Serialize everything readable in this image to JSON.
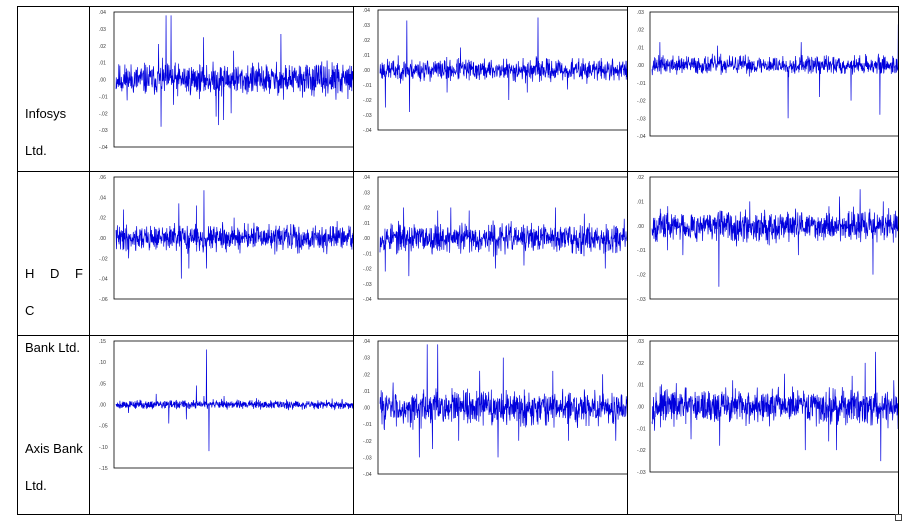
{
  "rows": [
    {
      "label_lines": [
        "Infosys",
        "Ltd."
      ]
    },
    {
      "label_lines": [
        "H D F C",
        "Bank Ltd."
      ]
    },
    {
      "label_lines": [
        "Axis Bank",
        "Ltd."
      ]
    }
  ],
  "colors": {
    "series": "#0000dd",
    "frame": "#000000",
    "ticks": "#333333"
  },
  "chart_data": [
    {
      "type": "line",
      "row": 0,
      "col": 0,
      "yticks": [
        ".04",
        ".03",
        ".02",
        ".01",
        ".00",
        "-.01",
        "-.02",
        "-.03",
        "-.04"
      ],
      "ylim": [
        -0.04,
        0.04
      ],
      "n": 900,
      "noise": 0.0045,
      "seed": 11,
      "spikes": [
        [
          0.17,
          0.021
        ],
        [
          0.18,
          -0.028
        ],
        [
          0.2,
          0.038
        ],
        [
          0.22,
          0.038
        ],
        [
          0.23,
          -0.015
        ],
        [
          0.35,
          0.025
        ],
        [
          0.4,
          -0.022
        ],
        [
          0.41,
          -0.027
        ],
        [
          0.43,
          -0.024
        ],
        [
          0.46,
          -0.02
        ],
        [
          0.47,
          0.017
        ],
        [
          0.66,
          0.027
        ],
        [
          0.67,
          -0.012
        ],
        [
          0.88,
          -0.012
        ]
      ]
    },
    {
      "type": "line",
      "row": 0,
      "col": 1,
      "yticks": [
        ".04",
        ".03",
        ".02",
        ".01",
        ".00",
        "-.01",
        "-.02",
        "-.03",
        "-.04"
      ],
      "ylim": [
        -0.04,
        0.04
      ],
      "n": 900,
      "noise": 0.0035,
      "seed": 23,
      "spikes": [
        [
          0.02,
          -0.025
        ],
        [
          0.1,
          0.033
        ],
        [
          0.11,
          -0.028
        ],
        [
          0.25,
          -0.015
        ],
        [
          0.3,
          0.015
        ],
        [
          0.48,
          -0.02
        ],
        [
          0.55,
          -0.015
        ],
        [
          0.59,
          0.035
        ],
        [
          0.7,
          -0.013
        ],
        [
          0.95,
          -0.016
        ]
      ]
    },
    {
      "type": "line",
      "row": 0,
      "col": 2,
      "yticks": [
        ".03",
        ".02",
        ".01",
        ".00",
        "-.01",
        "-.02",
        "-.03",
        "-.04"
      ],
      "ylim": [
        -0.04,
        0.03
      ],
      "n": 900,
      "noise": 0.0025,
      "seed": 37,
      "spikes": [
        [
          0.03,
          0.013
        ],
        [
          0.25,
          0.011
        ],
        [
          0.52,
          -0.03
        ],
        [
          0.57,
          0.013
        ],
        [
          0.64,
          -0.018
        ],
        [
          0.76,
          -0.02
        ],
        [
          0.87,
          -0.028
        ],
        [
          0.94,
          0.023
        ],
        [
          0.96,
          -0.01
        ],
        [
          0.98,
          0.008
        ]
      ]
    },
    {
      "type": "line",
      "row": 1,
      "col": 0,
      "yticks": [
        ".06",
        ".04",
        ".02",
        ".00",
        "-.02",
        "-.04",
        "-.06"
      ],
      "ylim": [
        -0.06,
        0.06
      ],
      "n": 900,
      "noise": 0.006,
      "seed": 41,
      "spikes": [
        [
          0.03,
          0.028
        ],
        [
          0.05,
          -0.02
        ],
        [
          0.25,
          0.034
        ],
        [
          0.26,
          -0.04
        ],
        [
          0.29,
          -0.03
        ],
        [
          0.32,
          0.032
        ],
        [
          0.35,
          0.047
        ],
        [
          0.36,
          -0.03
        ],
        [
          0.47,
          0.02
        ],
        [
          0.55,
          0.015
        ],
        [
          0.73,
          -0.015
        ]
      ]
    },
    {
      "type": "line",
      "row": 1,
      "col": 1,
      "yticks": [
        ".04",
        ".03",
        ".02",
        ".01",
        ".00",
        "-.01",
        "-.02",
        "-.03",
        "-.04"
      ],
      "ylim": [
        -0.04,
        0.04
      ],
      "n": 900,
      "noise": 0.0045,
      "seed": 53,
      "spikes": [
        [
          0.02,
          -0.022
        ],
        [
          0.09,
          0.02
        ],
        [
          0.11,
          -0.025
        ],
        [
          0.22,
          0.018
        ],
        [
          0.27,
          0.02
        ],
        [
          0.34,
          0.018
        ],
        [
          0.44,
          -0.02
        ],
        [
          0.55,
          -0.018
        ],
        [
          0.67,
          0.02
        ],
        [
          0.78,
          0.016
        ],
        [
          0.86,
          -0.02
        ],
        [
          0.97,
          -0.015
        ]
      ]
    },
    {
      "type": "line",
      "row": 1,
      "col": 2,
      "yticks": [
        ".02",
        ".01",
        ".00",
        "-.01",
        "-.02",
        "-.03"
      ],
      "ylim": [
        -0.03,
        0.02
      ],
      "n": 900,
      "noise": 0.003,
      "seed": 67,
      "spikes": [
        [
          0.06,
          -0.01
        ],
        [
          0.12,
          -0.012
        ],
        [
          0.26,
          -0.025
        ],
        [
          0.38,
          0.01
        ],
        [
          0.57,
          -0.012
        ],
        [
          0.73,
          0.012
        ],
        [
          0.81,
          0.015
        ],
        [
          0.86,
          -0.02
        ],
        [
          0.9,
          0.01
        ],
        [
          0.97,
          0.012
        ]
      ]
    },
    {
      "type": "line",
      "row": 2,
      "col": 0,
      "yticks": [
        ".15",
        ".10",
        ".05",
        ".00",
        "-.05",
        "-.10",
        "-.15"
      ],
      "ylim": [
        -0.15,
        0.15
      ],
      "n": 900,
      "noise": 0.005,
      "seed": 79,
      "spikes": [
        [
          0.05,
          -0.02
        ],
        [
          0.16,
          0.025
        ],
        [
          0.21,
          -0.045
        ],
        [
          0.28,
          -0.035
        ],
        [
          0.32,
          0.045
        ],
        [
          0.35,
          0.02
        ],
        [
          0.36,
          -0.04
        ],
        [
          0.36,
          0.13
        ],
        [
          0.37,
          -0.11
        ],
        [
          0.43,
          0.02
        ],
        [
          0.56,
          0.015
        ]
      ]
    },
    {
      "type": "line",
      "row": 2,
      "col": 1,
      "yticks": [
        ".04",
        ".03",
        ".02",
        ".01",
        ".00",
        "-.01",
        "-.02",
        "-.03",
        "-.04"
      ],
      "ylim": [
        -0.04,
        0.04
      ],
      "n": 900,
      "noise": 0.005,
      "seed": 83,
      "spikes": [
        [
          0.05,
          0.015
        ],
        [
          0.15,
          -0.03
        ],
        [
          0.18,
          0.038
        ],
        [
          0.2,
          -0.025
        ],
        [
          0.22,
          0.038
        ],
        [
          0.3,
          -0.02
        ],
        [
          0.38,
          0.022
        ],
        [
          0.45,
          -0.03
        ],
        [
          0.47,
          0.03
        ],
        [
          0.53,
          -0.02
        ],
        [
          0.66,
          0.022
        ],
        [
          0.72,
          -0.02
        ],
        [
          0.85,
          0.02
        ],
        [
          0.9,
          -0.02
        ]
      ]
    },
    {
      "type": "line",
      "row": 2,
      "col": 2,
      "yticks": [
        ".03",
        ".02",
        ".01",
        ".00",
        "-.01",
        "-.02",
        "-.03"
      ],
      "ylim": [
        -0.03,
        0.03
      ],
      "n": 900,
      "noise": 0.0038,
      "seed": 97,
      "spikes": [
        [
          0.15,
          -0.015
        ],
        [
          0.26,
          -0.018
        ],
        [
          0.31,
          0.012
        ],
        [
          0.51,
          0.015
        ],
        [
          0.59,
          -0.02
        ],
        [
          0.68,
          -0.016
        ],
        [
          0.71,
          -0.02
        ],
        [
          0.77,
          0.014
        ],
        [
          0.82,
          0.02
        ],
        [
          0.86,
          0.025
        ],
        [
          0.88,
          -0.025
        ],
        [
          0.93,
          0.012
        ]
      ]
    }
  ]
}
